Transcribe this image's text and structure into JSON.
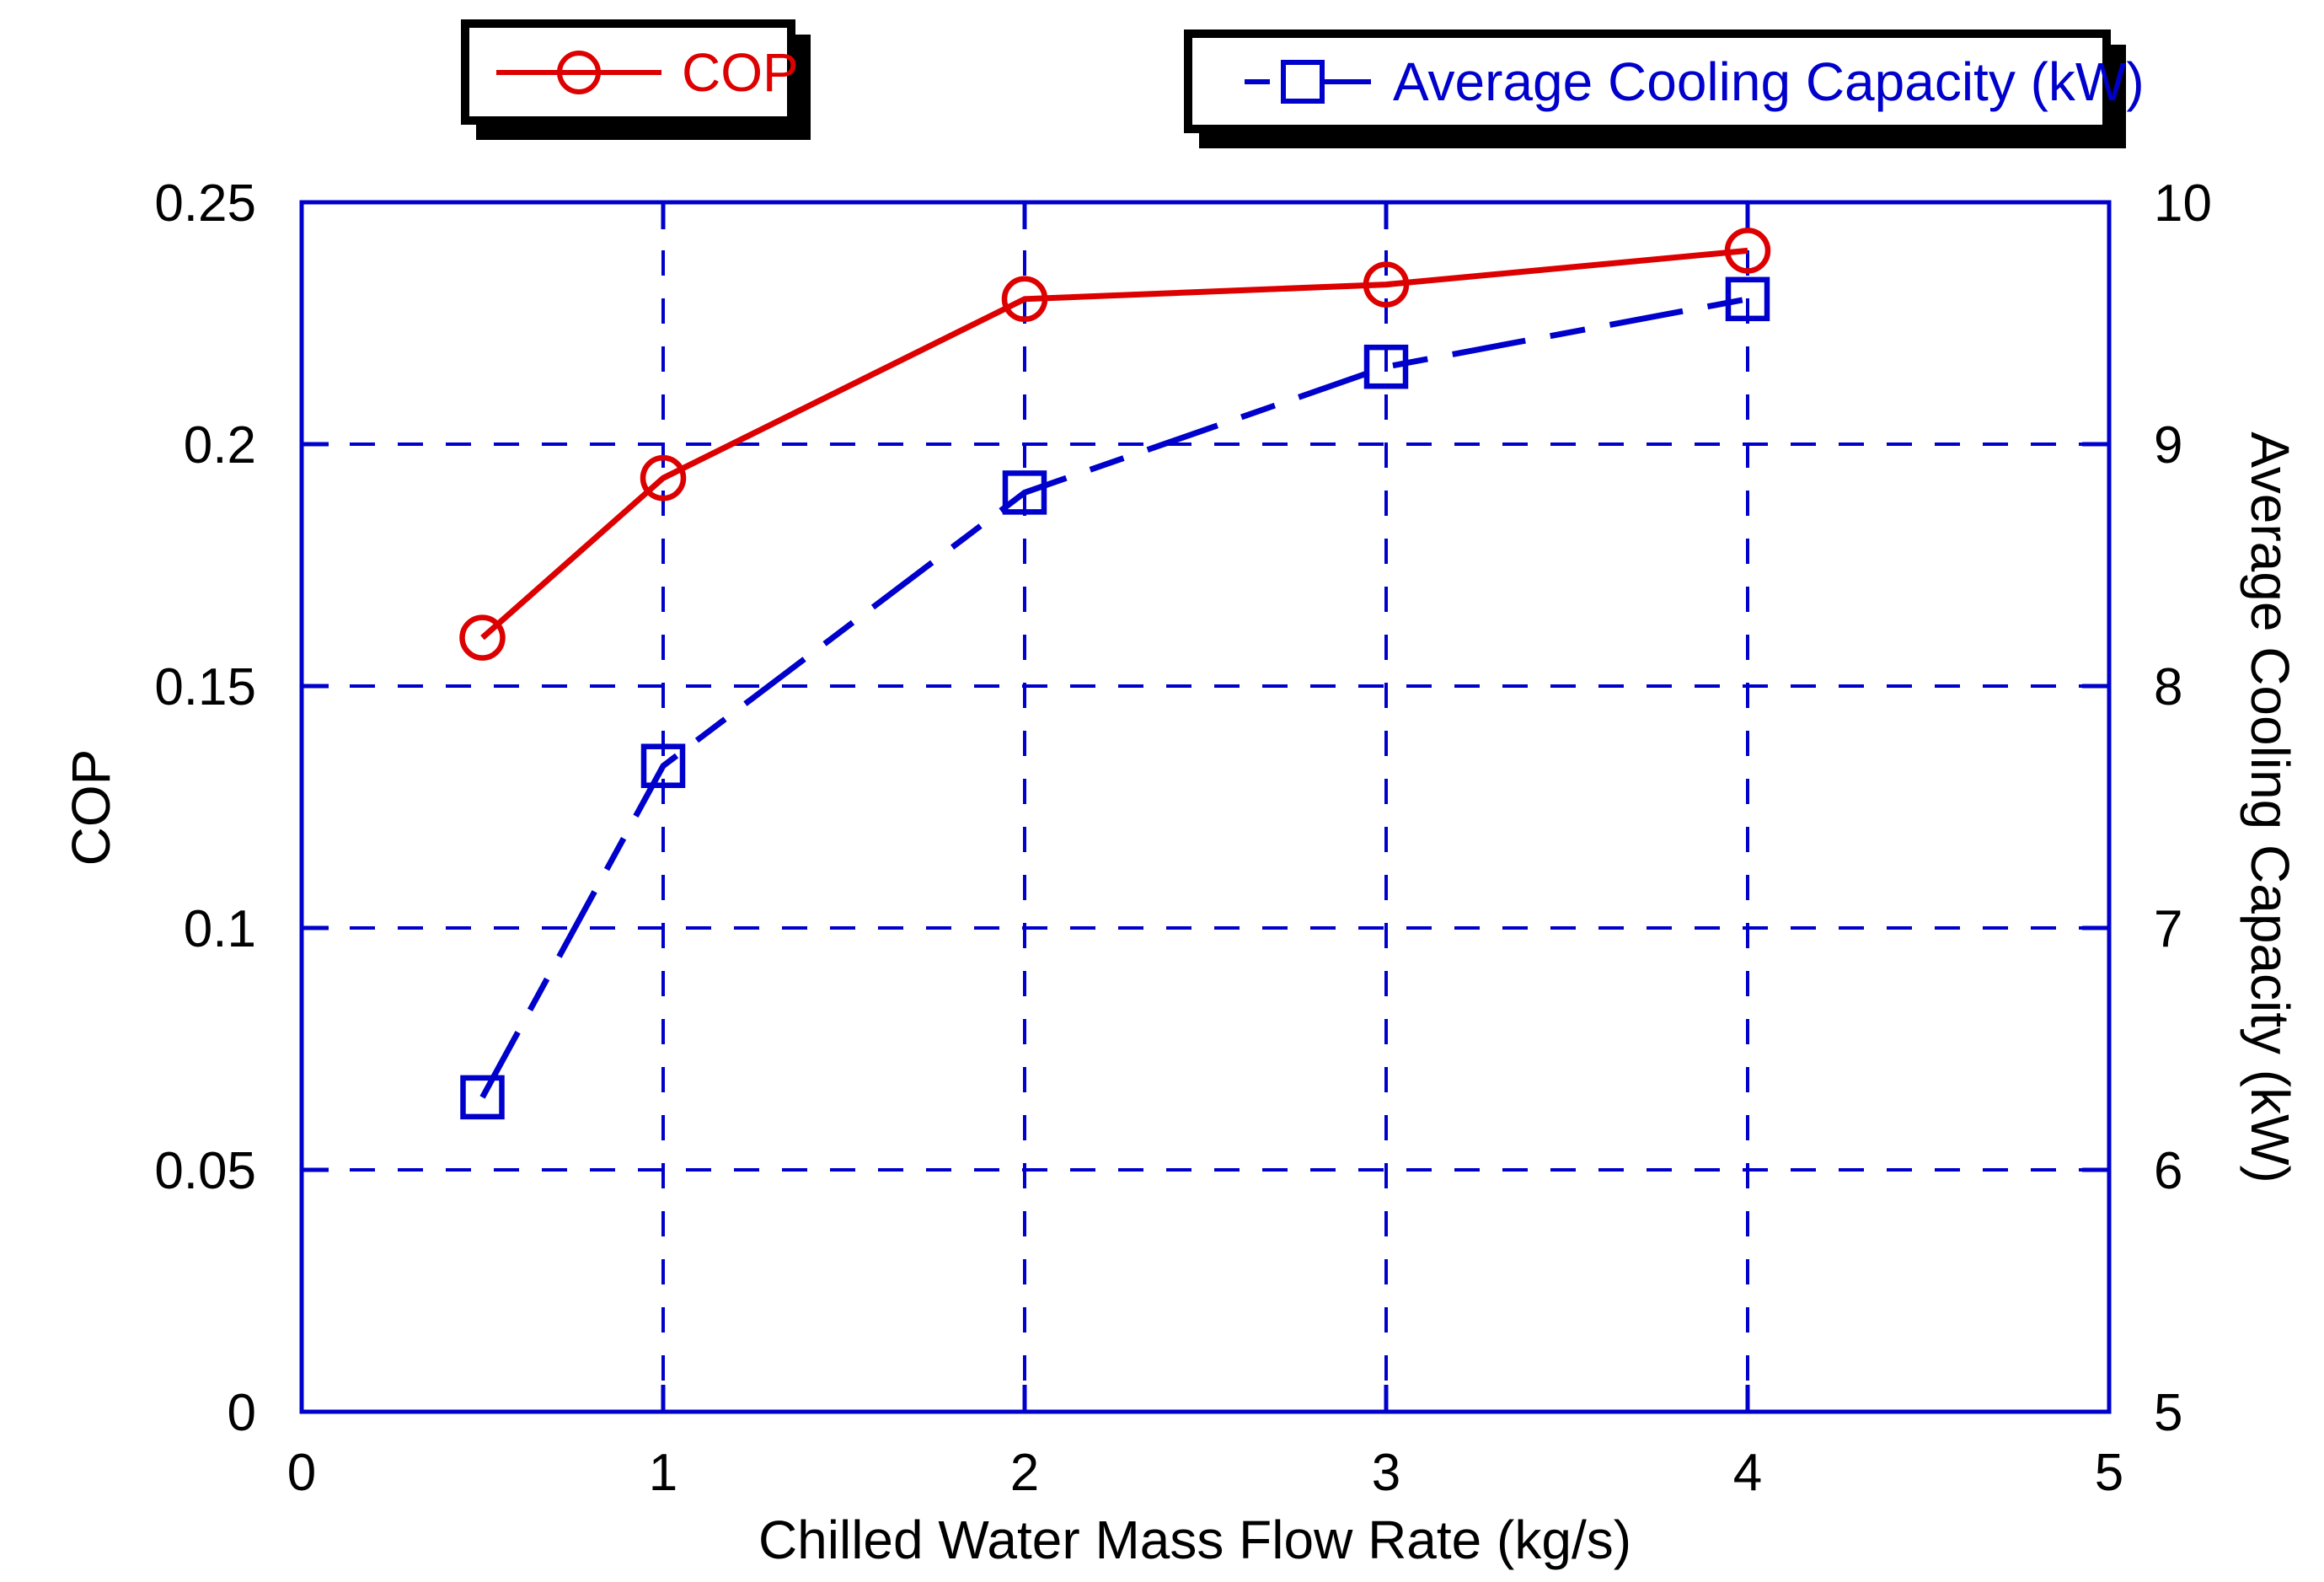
{
  "figure": {
    "background": "#ffffff",
    "colors": {
      "cop": "#dd0000",
      "capacity": "#0000cc",
      "frame": "#0000cc",
      "grid": "#0000cc",
      "text": "#000000",
      "legend_border": "#000000"
    }
  },
  "chart_data": {
    "type": "line",
    "title": "",
    "x": [
      0.5,
      1,
      2,
      3,
      4
    ],
    "series": [
      {
        "name": "COP",
        "axis": "left",
        "color": "#dd0000",
        "marker": "circle",
        "line_style": "solid",
        "values": [
          0.16,
          0.193,
          0.23,
          0.233,
          0.24
        ]
      },
      {
        "name": "Average Cooling Capacity (kW)",
        "axis": "right",
        "color": "#0000cc",
        "marker": "square",
        "line_style": "dash-dot",
        "values": [
          6.3,
          7.67,
          8.8,
          9.32,
          9.6
        ]
      }
    ],
    "xlabel": "Chilled Water Mass Flow Rate (kg/s)",
    "ylabel_left": "COP",
    "ylabel_right": "Average Cooling Capacity (kW)",
    "xlim": [
      0,
      5
    ],
    "ylim_left": [
      0,
      0.25
    ],
    "ylim_right": [
      5,
      10
    ],
    "xtick_labels": [
      "0",
      "1",
      "2",
      "3",
      "4",
      "5"
    ],
    "ytick_labels_left": [
      "0",
      "0.05",
      "0.1",
      "0.15",
      "0.2",
      "0.25"
    ],
    "ytick_labels_right": [
      "5",
      "6",
      "7",
      "8",
      "9",
      "10"
    ],
    "grid": true,
    "legend_position": "top"
  }
}
